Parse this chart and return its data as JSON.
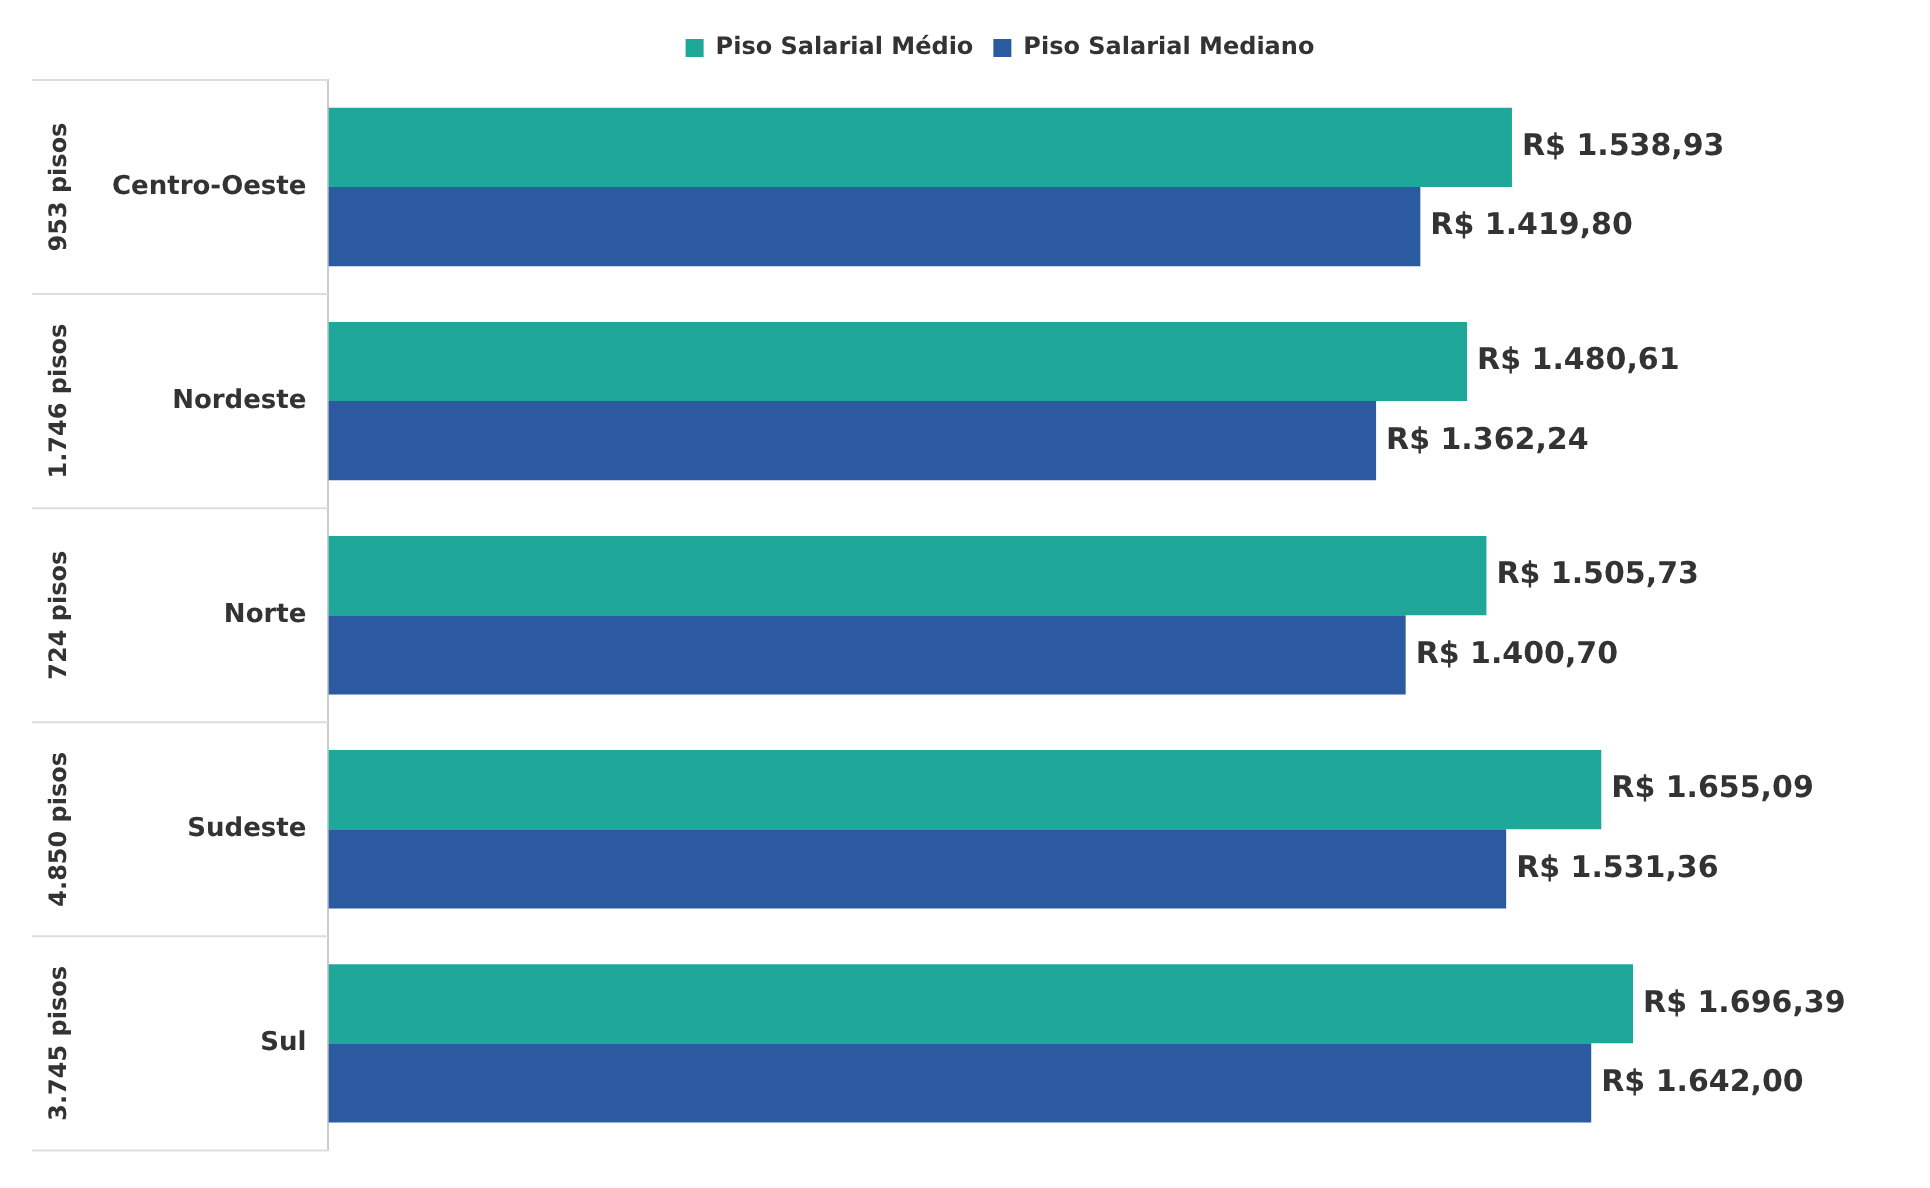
{
  "chart_data": {
    "type": "bar",
    "orientation": "horizontal",
    "categories": [
      "Centro-Oeste",
      "Nordeste",
      "Norte",
      "Sudeste",
      "Sul"
    ],
    "series": [
      {
        "name": "Piso Salarial Médio",
        "color": "#1fa89a",
        "values": [
          1538.93,
          1480.61,
          1505.73,
          1655.09,
          1696.39
        ],
        "value_labels": [
          "R$ 1.538,93",
          "R$ 1.480,61",
          "R$ 1.505,73",
          "R$ 1.655,09",
          "R$ 1.696,39"
        ]
      },
      {
        "name": "Piso Salarial Mediano",
        "color": "#2b5aa0",
        "values": [
          1419.8,
          1362.24,
          1400.7,
          1531.36,
          1642.0
        ],
        "value_labels": [
          "R$ 1.419,80",
          "R$ 1.362,24",
          "R$ 1.400,70",
          "R$ 1.531,36",
          "R$ 1.642,00"
        ]
      }
    ],
    "annotations": [
      "953 pisos",
      "1.746 pisos",
      "724 pisos",
      "4.850 pisos",
      "3.745 pisos"
    ],
    "legend": "top"
  }
}
